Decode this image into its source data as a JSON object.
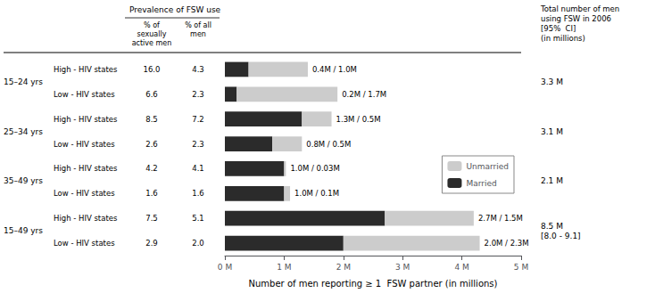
{
  "chart_data": {
    "type": "bar",
    "orientation": "horizontal",
    "stacked": true,
    "grid": false,
    "legend": "right",
    "xlabel": "Number of men reporting ≥ 1  FSW partner (in millions)",
    "xlim": [
      0,
      5
    ],
    "xticks": [
      {
        "value": 0,
        "label": "0 M"
      },
      {
        "value": 1,
        "label": "1 M"
      },
      {
        "value": 2,
        "label": "2 M"
      },
      {
        "value": 3,
        "label": "3 M"
      },
      {
        "value": 4,
        "label": "4 M"
      },
      {
        "value": 5,
        "label": "5 M"
      }
    ],
    "categories": [
      "High - HIV states",
      "Low - HIV states",
      "High - HIV states",
      "Low - HIV states",
      "High - HIV states",
      "Low - HIV states",
      "High - HIV states",
      "Low - HIV states"
    ],
    "row_group": [
      "15–24 yrs",
      "15–24 yrs",
      "25–34 yrs",
      "25–34 yrs",
      "35–49 yrs",
      "35–49 yrs",
      "15–49 yrs",
      "15–49 yrs"
    ],
    "groups": [
      {
        "name": "15–24 yrs",
        "total": "3.3 M"
      },
      {
        "name": "25–34 yrs",
        "total": "3.1 M"
      },
      {
        "name": "35–49 yrs",
        "total": "2.1 M"
      },
      {
        "name": "15–49 yrs",
        "total": "8.5 M\n[8.0 - 9.1]"
      }
    ],
    "series": [
      {
        "name": "Married",
        "color": "#2b2b2b",
        "values": [
          0.4,
          0.2,
          1.3,
          0.8,
          1.0,
          1.0,
          2.7,
          2.0
        ]
      },
      {
        "name": "Unmarried",
        "color": "#cccccc",
        "values": [
          1.0,
          1.7,
          0.5,
          0.5,
          0.03,
          0.1,
          1.5,
          2.3
        ]
      }
    ],
    "bar_labels": [
      "0.4M / 1.0M",
      "0.2M / 1.7M",
      "1.3M / 0.5M",
      "0.8M / 0.5M",
      "1.0M / 0.03M",
      "1.0M / 0.1M",
      "2.7M / 1.5M",
      "2.0M / 2.3M"
    ],
    "column_title": "Prevalence of FSW use",
    "columns": [
      {
        "header": "% of\nsexually\nactive men",
        "values": [
          "16.0",
          "6.6",
          "8.5",
          "2.6",
          "4.2",
          "1.6",
          "7.5",
          "2.9"
        ]
      },
      {
        "header": "% of all\nmen",
        "values": [
          "4.3",
          "2.3",
          "7.2",
          "2.3",
          "4.1",
          "1.6",
          "5.1",
          "2.0"
        ]
      }
    ],
    "total_title": "Total number of men\nusing FSW in 2006\n[95%  CI]\n(in millions)"
  }
}
